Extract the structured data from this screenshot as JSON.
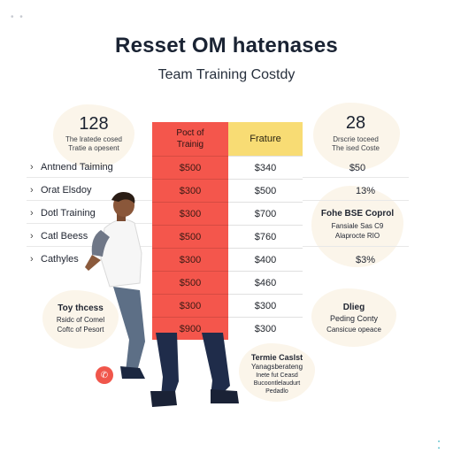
{
  "header": {
    "title": "Resset OM hatenases",
    "subtitle": "Team Training Costdy"
  },
  "left_stat": {
    "number": "128",
    "caption_1": "The lratede cosed",
    "caption_2": "Tratie a opesent"
  },
  "right_stat": {
    "number": "28",
    "caption_1": "Drscrie toceed",
    "caption_2": "The ised Coste"
  },
  "table": {
    "header_red_1": "Poct of",
    "header_red_2": "Trainig",
    "header_yellow": "Frature",
    "red_values": [
      "$500",
      "$300",
      "$300",
      "$500",
      "$300",
      "$500",
      "$300",
      "$900"
    ],
    "white_values": [
      "$340",
      "$500",
      "$700",
      "$760",
      "$400",
      "$460",
      "$300",
      "$300"
    ]
  },
  "row_labels": [
    {
      "chevron": "›",
      "label": "Antnend Taiming"
    },
    {
      "chevron": "›",
      "label": "Orat Elsdoy"
    },
    {
      "chevron": "›",
      "label": "Dotl Training"
    },
    {
      "chevron": "›",
      "label": "Catl Beess"
    },
    {
      "chevron": "›",
      "label": "Cathyles"
    }
  ],
  "right_values": {
    "r1": "$50",
    "r2": "13%",
    "block1_title": "Fohe BSE Coprol",
    "block1_line1": "Fansiale Sas  C9",
    "block1_line2": "Alaprocte RIO",
    "r4": "$3%"
  },
  "left_bottom_blob": {
    "title": "Toy thcess",
    "line1": "Rsidc of Comel",
    "line2": "Coftc of Pesort"
  },
  "right_bottom_blob": {
    "title": "Dlieg",
    "subtitle": "Peding Conty",
    "line1": "Cansicue opeace"
  },
  "bottom_note": {
    "title": "Termie Caslst",
    "subtitle": "Yanagsberateng",
    "line1": "Inete fut Ceasd",
    "line2": "Bucoontlelaudurt",
    "line3": "Pedadlo"
  },
  "icons": {
    "corner_dots": "• •",
    "corner_mark": "⁚",
    "phone_icon": "✆"
  },
  "colors": {
    "red": "#f4564c",
    "yellow": "#f8dc74",
    "cream": "#fbf5ea"
  }
}
